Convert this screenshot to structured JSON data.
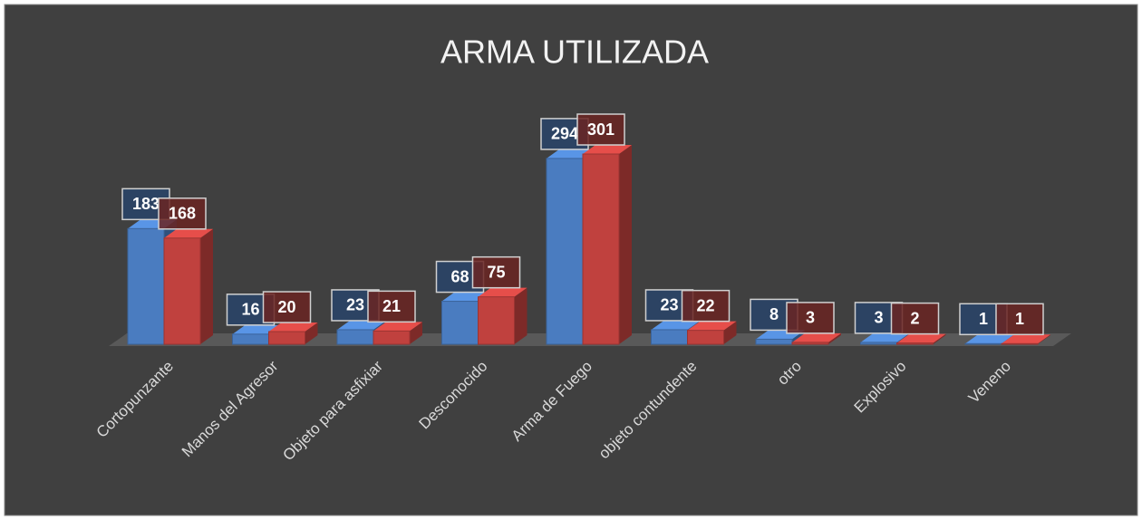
{
  "chart_data": {
    "type": "bar3d",
    "title": "ARMA UTILIZADA",
    "categories": [
      "Cortopunzante",
      "Manos del Agresor",
      "Objeto para asfixiar",
      "Desconocido",
      "Arma de Fuego",
      "objeto contundente",
      "otro",
      "Explosivo",
      "Veneno"
    ],
    "series": [
      {
        "color": "#4a7cc0",
        "values": [
          183,
          16,
          23,
          68,
          294,
          23,
          8,
          3,
          1
        ]
      },
      {
        "color": "#c0413e",
        "values": [
          168,
          20,
          21,
          75,
          301,
          22,
          3,
          2,
          1
        ]
      }
    ]
  }
}
